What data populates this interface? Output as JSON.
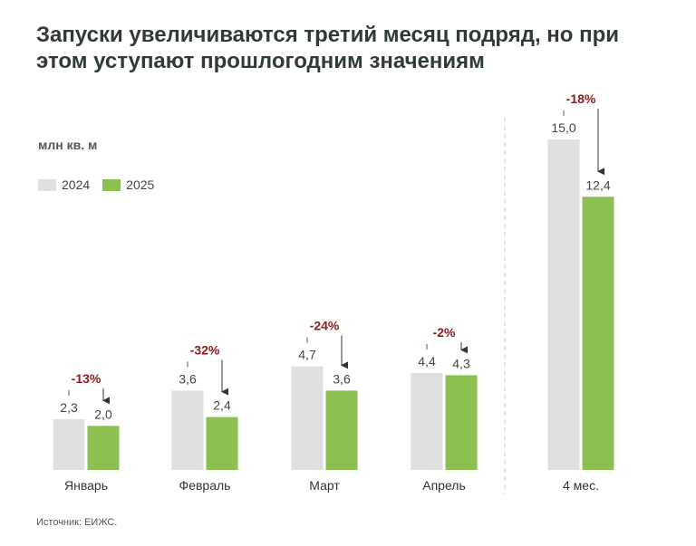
{
  "title_lines": [
    "Запуски увеличиваются третий месяц подряд, но при",
    "этом уступают прошлогодним значениям"
  ],
  "unit": "млн кв. м",
  "source": "Источник: ЕИЖС.",
  "colors": {
    "2024": "#e0e0e0",
    "2025": "#8cc152",
    "delta": "#8b1a1a"
  },
  "chart_data": {
    "type": "bar",
    "title": "Запуски увеличиваются третий месяц подряд, но при этом уступают прошлогодним значениям",
    "ylabel": "млн кв. м",
    "categories": [
      "Январь",
      "Февраль",
      "Март",
      "Апрель",
      "4 мес."
    ],
    "series": [
      {
        "name": "2024",
        "values": [
          2.3,
          3.6,
          4.7,
          4.4,
          15.0
        ],
        "labels": [
          "2,3",
          "3,6",
          "4,7",
          "4,4",
          "15,0"
        ]
      },
      {
        "name": "2025",
        "values": [
          2.0,
          2.4,
          3.6,
          4.3,
          12.4
        ],
        "labels": [
          "2,0",
          "2,4",
          "3,6",
          "4,3",
          "12,4"
        ]
      }
    ],
    "changes": [
      "-13%",
      "-32%",
      "-24%",
      "-2%",
      "-18%"
    ],
    "legend": "top-left",
    "grid": false
  }
}
